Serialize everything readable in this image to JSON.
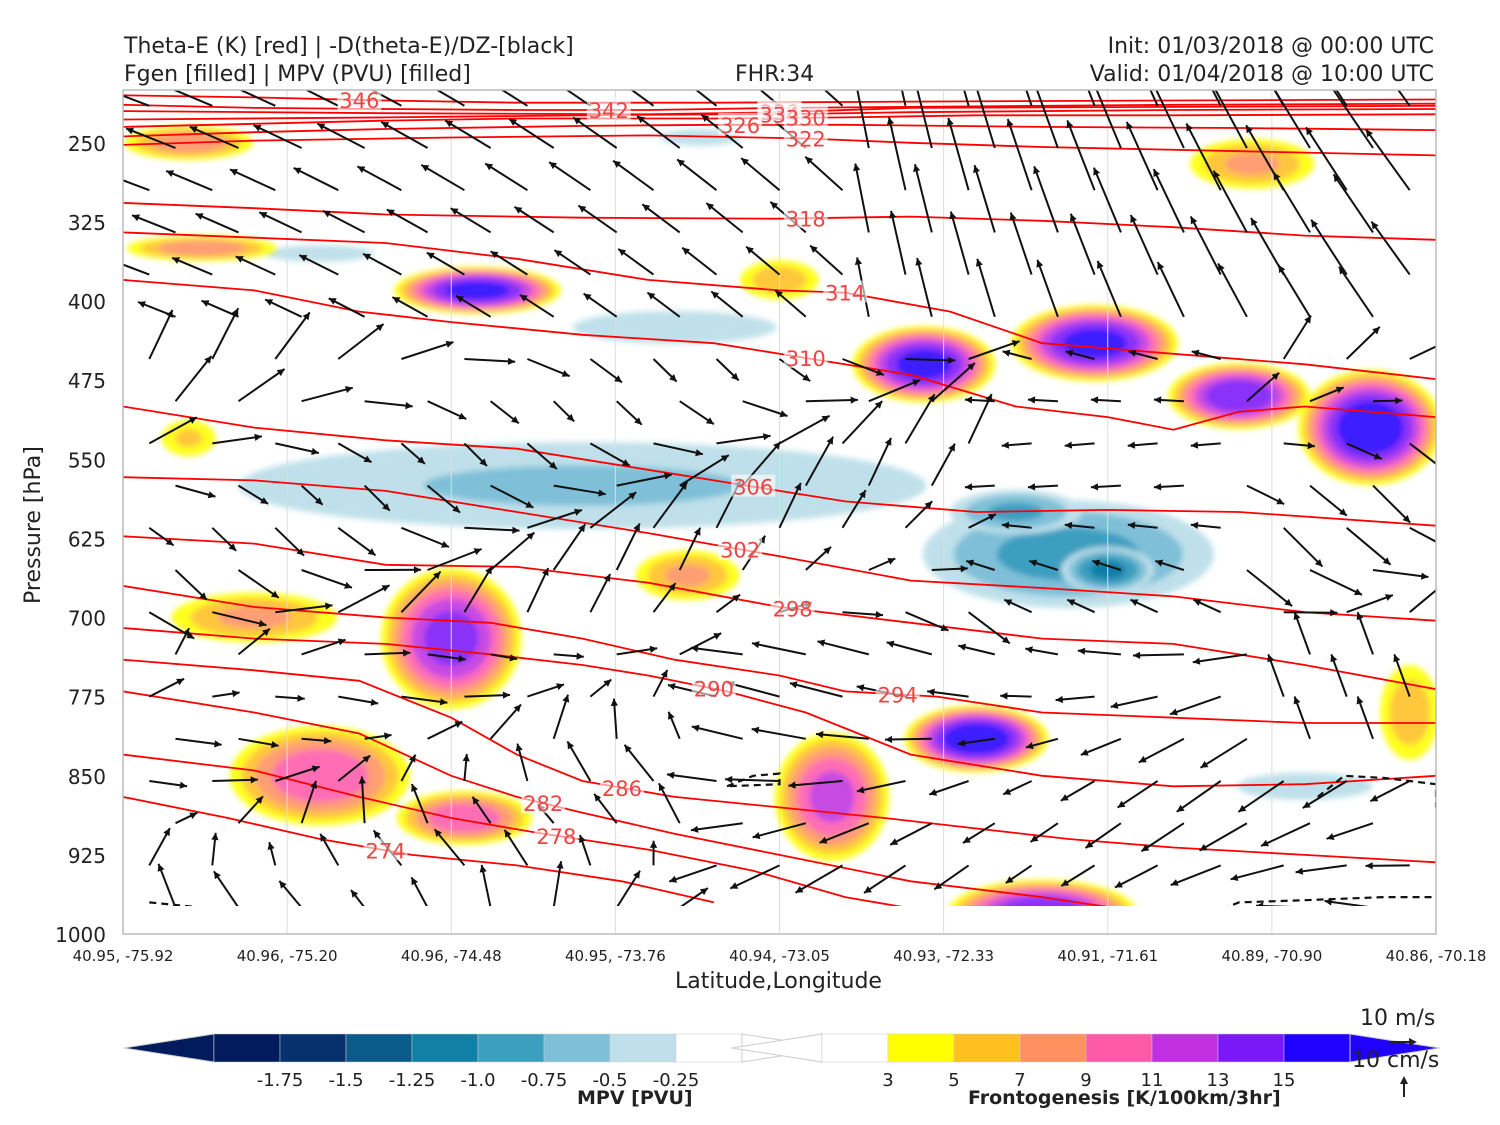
{
  "header": {
    "left_line1": "Theta-E (K) [red] | -D(theta-E)/DZ-[black]",
    "left_line2": "Fgen [filled] | MPV (PVU) [filled]",
    "center": "FHR:34",
    "right_line1": "Init: 01/03/2018 @ 00:00 UTC",
    "right_line2": "Valid: 01/04/2018 @ 10:00 UTC"
  },
  "chart_data": {
    "type": "cross-section",
    "xlabel": "Latitude,Longitude",
    "ylabel": "Pressure [hPa]",
    "x_ticks": [
      "40.95, -75.92",
      "40.96, -75.20",
      "40.96, -74.48",
      "40.95, -73.76",
      "40.94, -73.05",
      "40.93, -72.33",
      "40.91, -71.61",
      "40.89, -70.90",
      "40.86, -70.18"
    ],
    "y_ticks": [
      250,
      325,
      400,
      475,
      550,
      625,
      700,
      775,
      850,
      925,
      1000
    ],
    "ylim": [
      1000,
      200
    ],
    "theta_e_contours": {
      "color": "#ff0000",
      "labels": [
        338,
        334,
        330,
        326,
        322,
        318,
        314,
        310,
        306,
        302,
        298,
        294,
        290,
        286,
        282,
        278,
        274,
        346,
        342
      ],
      "lines": [
        {
          "value": 346,
          "pts": [
            [
              0,
              205
            ],
            [
              0.1,
              207
            ],
            [
              0.2,
              210
            ],
            [
              0.3,
              212
            ],
            [
              0.45,
              212
            ],
            [
              0.6,
              211
            ],
            [
              0.8,
              210
            ],
            [
              1.0,
              209
            ]
          ]
        },
        {
          "value": 342,
          "pts": [
            [
              0,
              214
            ],
            [
              0.1,
              217
            ],
            [
              0.2,
              218
            ],
            [
              0.3,
              219
            ],
            [
              0.4,
              219
            ],
            [
              0.5,
              217
            ],
            [
              0.6,
              216
            ],
            [
              0.8,
              214
            ],
            [
              1.0,
              213
            ]
          ]
        },
        {
          "value": 338,
          "pts": [
            [
              0,
              220
            ],
            [
              0.2,
              222
            ],
            [
              0.4,
              223
            ],
            [
              0.5,
              221
            ],
            [
              0.6,
              217
            ],
            [
              0.8,
              216
            ],
            [
              1.0,
              215
            ]
          ]
        },
        {
          "value": 334,
          "pts": [
            [
              0,
              228
            ],
            [
              0.2,
              226
            ],
            [
              0.35,
              224
            ],
            [
              0.45,
              223
            ],
            [
              0.5,
              223
            ],
            [
              0.6,
              221
            ],
            [
              0.8,
              219
            ],
            [
              1.0,
              218
            ]
          ]
        },
        {
          "value": 330,
          "pts": [
            [
              0,
              235
            ],
            [
              0.1,
              232
            ],
            [
              0.2,
              229
            ],
            [
              0.3,
              227
            ],
            [
              0.45,
              227
            ],
            [
              0.55,
              226
            ],
            [
              0.65,
              224
            ],
            [
              0.8,
              224
            ],
            [
              1.0,
              223
            ]
          ]
        },
        {
          "value": 326,
          "pts": [
            [
              0,
              244
            ],
            [
              0.1,
              240
            ],
            [
              0.2,
              237
            ],
            [
              0.35,
              234
            ],
            [
              0.45,
              233
            ],
            [
              0.55,
              233
            ],
            [
              0.7,
              235
            ],
            [
              0.85,
              236
            ],
            [
              1.0,
              238
            ]
          ]
        },
        {
          "value": 322,
          "pts": [
            [
              0,
              252
            ],
            [
              0.1,
              248
            ],
            [
              0.25,
              245
            ],
            [
              0.4,
              243
            ],
            [
              0.52,
              246
            ],
            [
              0.6,
              250
            ],
            [
              0.7,
              254
            ],
            [
              0.85,
              258
            ],
            [
              1.0,
              262
            ]
          ]
        },
        {
          "value": 318,
          "pts": [
            [
              0,
              307
            ],
            [
              0.1,
              312
            ],
            [
              0.2,
              318
            ],
            [
              0.35,
              321
            ],
            [
              0.5,
              322
            ],
            [
              0.6,
              320
            ],
            [
              0.7,
              324
            ],
            [
              0.8,
              330
            ],
            [
              0.9,
              338
            ],
            [
              1.0,
              342
            ]
          ]
        },
        {
          "value": 314,
          "pts": [
            [
              0,
              335
            ],
            [
              0.1,
              340
            ],
            [
              0.2,
              345
            ],
            [
              0.3,
              360
            ],
            [
              0.4,
              380
            ],
            [
              0.5,
              390
            ],
            [
              0.55,
              392
            ],
            [
              0.63,
              410
            ],
            [
              0.7,
              440
            ],
            [
              0.8,
              450
            ],
            [
              0.9,
              460
            ],
            [
              1.0,
              474
            ]
          ]
        },
        {
          "value": 310,
          "pts": [
            [
              0,
              380
            ],
            [
              0.1,
              390
            ],
            [
              0.18,
              410
            ],
            [
              0.25,
              420
            ],
            [
              0.35,
              432
            ],
            [
              0.45,
              440
            ],
            [
              0.52,
              454
            ],
            [
              0.6,
              470
            ],
            [
              0.68,
              500
            ],
            [
              0.75,
              510
            ],
            [
              0.8,
              522
            ],
            [
              0.85,
              505
            ],
            [
              0.9,
              500
            ],
            [
              1.0,
              510
            ]
          ]
        },
        {
          "value": 306,
          "pts": [
            [
              0,
              500
            ],
            [
              0.1,
              520
            ],
            [
              0.2,
              532
            ],
            [
              0.3,
              540
            ],
            [
              0.4,
              560
            ],
            [
              0.5,
              580
            ],
            [
              0.55,
              590
            ],
            [
              0.65,
              600
            ],
            [
              0.75,
              598
            ],
            [
              0.85,
              600
            ],
            [
              1.0,
              613
            ]
          ]
        },
        {
          "value": 302,
          "pts": [
            [
              0,
              567
            ],
            [
              0.1,
              570
            ],
            [
              0.2,
              580
            ],
            [
              0.3,
              600
            ],
            [
              0.4,
              620
            ],
            [
              0.5,
              642
            ],
            [
              0.6,
              665
            ],
            [
              0.7,
              672
            ],
            [
              0.8,
              680
            ],
            [
              0.9,
              695
            ],
            [
              1.0,
              703
            ]
          ]
        },
        {
          "value": 298,
          "pts": [
            [
              0,
              623
            ],
            [
              0.1,
              630
            ],
            [
              0.2,
              650
            ],
            [
              0.3,
              652
            ],
            [
              0.4,
              667
            ],
            [
              0.5,
              690
            ],
            [
              0.6,
              705
            ],
            [
              0.7,
              720
            ],
            [
              0.8,
              725
            ],
            [
              0.9,
              745
            ],
            [
              1.0,
              768
            ]
          ]
        },
        {
          "value": 294,
          "pts": [
            [
              0,
              670
            ],
            [
              0.1,
              690
            ],
            [
              0.2,
              700
            ],
            [
              0.28,
              705
            ],
            [
              0.35,
              720
            ],
            [
              0.42,
              740
            ],
            [
              0.5,
              755
            ],
            [
              0.55,
              770
            ],
            [
              0.62,
              775
            ],
            [
              0.7,
              790
            ],
            [
              0.8,
              795
            ],
            [
              0.9,
              800
            ],
            [
              1.0,
              800
            ]
          ]
        },
        {
          "value": 290,
          "pts": [
            [
              0,
              710
            ],
            [
              0.1,
              720
            ],
            [
              0.2,
              725
            ],
            [
              0.28,
              735
            ],
            [
              0.35,
              745
            ],
            [
              0.4,
              755
            ],
            [
              0.46,
              770
            ],
            [
              0.52,
              790
            ],
            [
              0.6,
              830
            ],
            [
              0.7,
              850
            ],
            [
              0.8,
              860
            ],
            [
              0.9,
              858
            ],
            [
              1.0,
              850
            ]
          ]
        },
        {
          "value": 286,
          "pts": [
            [
              0,
              740
            ],
            [
              0.1,
              750
            ],
            [
              0.18,
              760
            ],
            [
              0.25,
              795
            ],
            [
              0.3,
              830
            ],
            [
              0.35,
              855
            ],
            [
              0.42,
              870
            ],
            [
              0.5,
              880
            ],
            [
              0.58,
              890
            ],
            [
              0.65,
              900
            ],
            [
              0.72,
              910
            ],
            [
              0.8,
              918
            ],
            [
              0.9,
              925
            ],
            [
              1.0,
              932
            ]
          ]
        },
        {
          "value": 282,
          "pts": [
            [
              0,
              770
            ],
            [
              0.1,
              790
            ],
            [
              0.18,
              810
            ],
            [
              0.25,
              850
            ],
            [
              0.3,
              870
            ],
            [
              0.35,
              885
            ],
            [
              0.42,
              905
            ],
            [
              0.5,
              925
            ],
            [
              0.6,
              950
            ],
            [
              0.7,
              965
            ],
            [
              0.78,
              980
            ]
          ]
        },
        {
          "value": 278,
          "pts": [
            [
              0,
              830
            ],
            [
              0.1,
              845
            ],
            [
              0.18,
              870
            ],
            [
              0.25,
              890
            ],
            [
              0.32,
              905
            ],
            [
              0.4,
              920
            ],
            [
              0.48,
              940
            ],
            [
              0.55,
              965
            ],
            [
              0.62,
              980
            ]
          ]
        },
        {
          "value": 274,
          "pts": [
            [
              0,
              870
            ],
            [
              0.08,
              890
            ],
            [
              0.15,
              910
            ],
            [
              0.22,
              925
            ],
            [
              0.3,
              935
            ],
            [
              0.38,
              950
            ],
            [
              0.45,
              970
            ]
          ]
        }
      ]
    },
    "fgen": {
      "unit": "K/100km/3hr",
      "label": "Frontogenesis [K/100km/3hr]",
      "levels": [
        3,
        5,
        7,
        9,
        11,
        13,
        15
      ],
      "colors": [
        "#ffff00",
        "#ffc020",
        "#ff9060",
        "#ff5aaa",
        "#c030e0",
        "#7a18f8",
        "#2000ff"
      ],
      "blobs": [
        {
          "x": 0.27,
          "p": 390,
          "rx": 0.07,
          "rp": 25,
          "v": 15
        },
        {
          "x": 0.06,
          "p": 350,
          "rx": 0.07,
          "rp": 15,
          "v": 8
        },
        {
          "x": 0.5,
          "p": 380,
          "rx": 0.04,
          "rp": 25,
          "v": 6
        },
        {
          "x": 0.61,
          "p": 460,
          "rx": 0.06,
          "rp": 40,
          "v": 15
        },
        {
          "x": 0.74,
          "p": 440,
          "rx": 0.07,
          "rp": 40,
          "v": 15
        },
        {
          "x": 0.85,
          "p": 490,
          "rx": 0.06,
          "rp": 35,
          "v": 14
        },
        {
          "x": 0.95,
          "p": 520,
          "rx": 0.06,
          "rp": 60,
          "v": 16
        },
        {
          "x": 0.86,
          "p": 270,
          "rx": 0.06,
          "rp": 30,
          "v": 7
        },
        {
          "x": 0.05,
          "p": 250,
          "rx": 0.06,
          "rp": 20,
          "v": 8
        },
        {
          "x": 0.25,
          "p": 720,
          "rx": 0.06,
          "rp": 75,
          "v": 13
        },
        {
          "x": 0.1,
          "p": 700,
          "rx": 0.08,
          "rp": 30,
          "v": 7
        },
        {
          "x": 0.15,
          "p": 850,
          "rx": 0.08,
          "rp": 55,
          "v": 10
        },
        {
          "x": 0.26,
          "p": 890,
          "rx": 0.06,
          "rp": 30,
          "v": 10
        },
        {
          "x": 0.54,
          "p": 870,
          "rx": 0.05,
          "rp": 70,
          "v": 11
        },
        {
          "x": 0.65,
          "p": 815,
          "rx": 0.06,
          "rp": 35,
          "v": 16
        },
        {
          "x": 0.7,
          "p": 980,
          "rx": 0.08,
          "rp": 35,
          "v": 14
        },
        {
          "x": 0.98,
          "p": 790,
          "rx": 0.03,
          "rp": 60,
          "v": 6
        },
        {
          "x": 0.05,
          "p": 530,
          "rx": 0.03,
          "rp": 25,
          "v": 5
        },
        {
          "x": 0.43,
          "p": 660,
          "rx": 0.05,
          "rp": 30,
          "v": 7
        }
      ]
    },
    "mpv": {
      "unit": "PVU",
      "label": "MPV [PVU]",
      "levels": [
        -1.75,
        -1.5,
        -1.25,
        -1.0,
        -0.75,
        -0.5,
        -0.25
      ],
      "colors": [
        "#021b5c",
        "#06306e",
        "#0b5a8c",
        "#117fa6",
        "#3c9fc0",
        "#7fc0d8",
        "#bfe0ea"
      ],
      "blobs": [
        {
          "x": 0.35,
          "p": 575,
          "rx": 0.35,
          "rp": 55,
          "v": -0.5
        },
        {
          "x": 0.72,
          "p": 640,
          "rx": 0.13,
          "rp": 60,
          "v": -0.8
        },
        {
          "x": 0.68,
          "p": 600,
          "rx": 0.06,
          "rp": 25,
          "v": -0.75
        },
        {
          "x": 0.75,
          "p": 655,
          "rx": 0.04,
          "rp": 25,
          "v": -1.0
        },
        {
          "x": 0.42,
          "p": 425,
          "rx": 0.15,
          "rp": 30,
          "v": -0.3
        },
        {
          "x": 0.15,
          "p": 355,
          "rx": 0.08,
          "rp": 15,
          "v": -0.3
        },
        {
          "x": 0.9,
          "p": 860,
          "rx": 0.1,
          "rp": 25,
          "v": -0.3
        },
        {
          "x": 0.37,
          "p": 990,
          "rx": 0.04,
          "rp": 15,
          "v": -0.6
        },
        {
          "x": 0.44,
          "p": 245,
          "rx": 0.06,
          "rp": 15,
          "v": -0.3
        }
      ]
    },
    "scale": {
      "horizontal": "10 m/s",
      "vertical": "10 cm/s"
    }
  },
  "colorbars": {
    "mpv_ticks": [
      "-1.75",
      "-1.5",
      "-1.25",
      "-1.0",
      "-0.75",
      "-0.5",
      "-0.25"
    ],
    "fgen_ticks": [
      "3",
      "5",
      "7",
      "9",
      "11",
      "13",
      "15"
    ]
  }
}
